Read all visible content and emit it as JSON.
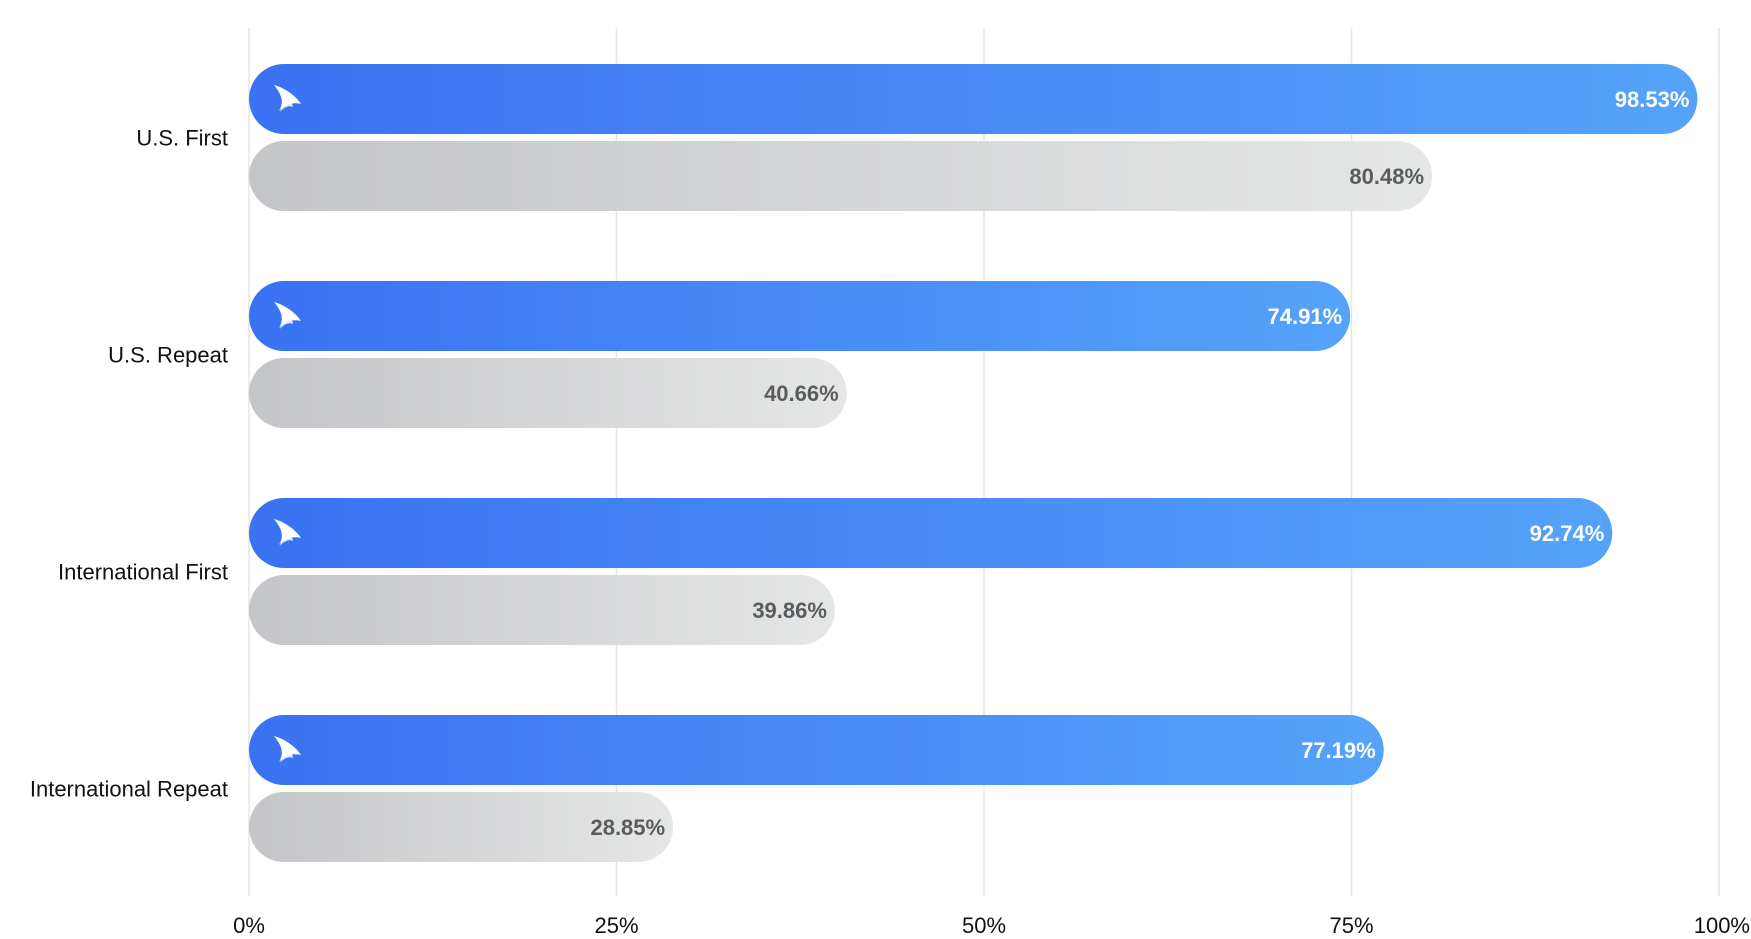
{
  "chart_data": {
    "type": "bar",
    "orientation": "horizontal",
    "categories": [
      "U.S. First",
      "U.S. Repeat",
      "International First",
      "International Repeat"
    ],
    "series": [
      {
        "color_start": "#3a72f2",
        "color_end": "#55a3f9",
        "icon": "swoosh-logo-icon",
        "values": [
          98.53,
          74.91,
          92.74,
          77.19
        ],
        "labels": [
          "98.53%",
          "74.91%",
          "92.74%",
          "77.19%"
        ]
      },
      {
        "color_start": "#c4c5c8",
        "color_end": "#e5e6e6",
        "values": [
          80.48,
          40.66,
          39.86,
          28.85
        ],
        "labels": [
          "80.48%",
          "40.66%",
          "39.86%",
          "28.85%"
        ]
      }
    ],
    "xlim": [
      0,
      100
    ],
    "x_ticks": [
      0,
      25,
      50,
      75,
      100
    ],
    "x_tick_labels": [
      "0%",
      "25%",
      "50%",
      "75%",
      "100%"
    ],
    "grid": "vertical",
    "legend": "none",
    "title": "",
    "xlabel": "",
    "ylabel": ""
  }
}
